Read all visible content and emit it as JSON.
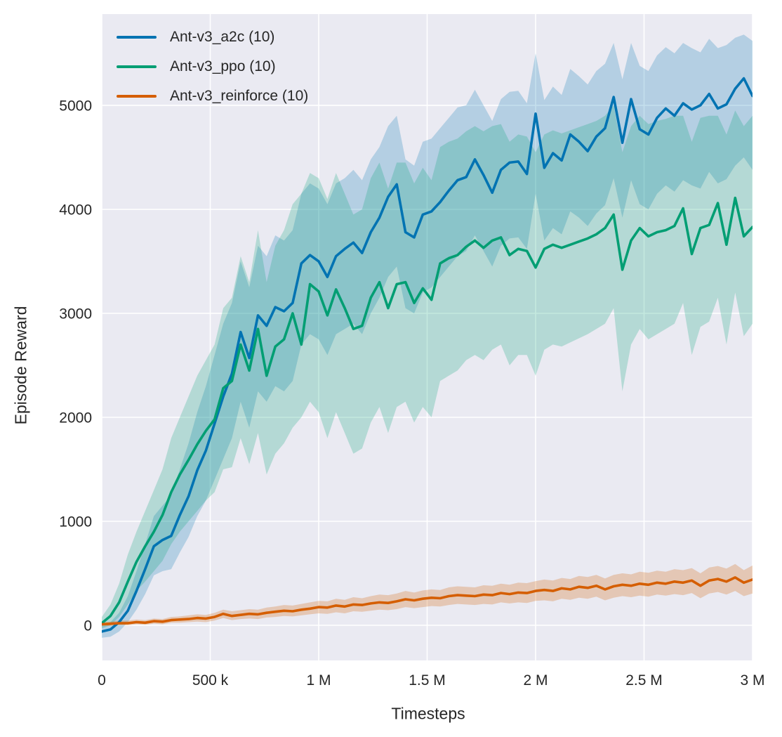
{
  "figure": {
    "background": "#ffffff",
    "plot_background": "#eaeaf2",
    "grid_color": "#ffffff",
    "text_color": "#262626"
  },
  "axes": {
    "xlabel": "Timesteps",
    "ylabel": "Episode Reward",
    "x_ticks": [
      {
        "value": 0,
        "label": "0"
      },
      {
        "value": 500000,
        "label": "500 k"
      },
      {
        "value": 1000000,
        "label": "1 M"
      },
      {
        "value": 1500000,
        "label": "1.5 M"
      },
      {
        "value": 2000000,
        "label": "2 M"
      },
      {
        "value": 2500000,
        "label": "2.5 M"
      },
      {
        "value": 3000000,
        "label": "3 M"
      }
    ],
    "y_ticks": [
      {
        "value": 0,
        "label": "0"
      },
      {
        "value": 1000,
        "label": "1000"
      },
      {
        "value": 2000,
        "label": "2000"
      },
      {
        "value": 3000,
        "label": "3000"
      },
      {
        "value": 4000,
        "label": "4000"
      },
      {
        "value": 5000,
        "label": "5000"
      }
    ]
  },
  "legend": {
    "entries": [
      {
        "label": "Ant-v3_a2c (10)",
        "color": "#0173b2"
      },
      {
        "label": "Ant-v3_ppo (10)",
        "color": "#029e73"
      },
      {
        "label": "Ant-v3_reinforce (10)",
        "color": "#d55e00"
      }
    ]
  },
  "chart_data": {
    "type": "line",
    "title": "",
    "xlabel": "Timesteps",
    "ylabel": "Episode Reward",
    "xlim": [
      0,
      3000000
    ],
    "ylim": [
      -338,
      5878
    ],
    "grid": true,
    "legend_position": "upper-left",
    "x": [
      0,
      40000,
      80000,
      120000,
      160000,
      200000,
      240000,
      280000,
      320000,
      360000,
      400000,
      440000,
      480000,
      520000,
      560000,
      600000,
      640000,
      680000,
      720000,
      760000,
      800000,
      840000,
      880000,
      920000,
      960000,
      1000000,
      1040000,
      1080000,
      1120000,
      1160000,
      1200000,
      1240000,
      1280000,
      1320000,
      1360000,
      1400000,
      1440000,
      1480000,
      1520000,
      1560000,
      1600000,
      1640000,
      1680000,
      1720000,
      1760000,
      1800000,
      1840000,
      1880000,
      1920000,
      1960000,
      2000000,
      2040000,
      2080000,
      2120000,
      2160000,
      2200000,
      2240000,
      2280000,
      2320000,
      2360000,
      2400000,
      2440000,
      2480000,
      2520000,
      2560000,
      2600000,
      2640000,
      2680000,
      2720000,
      2760000,
      2800000,
      2840000,
      2880000,
      2920000,
      2960000,
      3000000
    ],
    "series": [
      {
        "id": "a2c",
        "name": "Ant-v3_a2c (10)",
        "color": "#0173b2",
        "band_opacity": 0.23,
        "mean": [
          -60,
          -40,
          30,
          140,
          330,
          540,
          760,
          820,
          860,
          1060,
          1240,
          1490,
          1680,
          1940,
          2200,
          2420,
          2820,
          2570,
          2980,
          2880,
          3060,
          3020,
          3100,
          3480,
          3560,
          3500,
          3350,
          3550,
          3620,
          3680,
          3580,
          3780,
          3920,
          4120,
          4240,
          3780,
          3730,
          3950,
          3980,
          4070,
          4180,
          4280,
          4310,
          4480,
          4330,
          4160,
          4380,
          4450,
          4460,
          4340,
          4920,
          4400,
          4540,
          4470,
          4720,
          4650,
          4560,
          4700,
          4780,
          5080,
          4640,
          5060,
          4770,
          4720,
          4880,
          4970,
          4900,
          5020,
          4960,
          5000,
          5110,
          4970,
          5010,
          5160,
          5260,
          5090
        ],
        "lower": [
          -120,
          -110,
          -60,
          30,
          150,
          300,
          480,
          520,
          540,
          700,
          850,
          1050,
          1200,
          1400,
          1600,
          1800,
          2150,
          1900,
          2250,
          2150,
          2300,
          2250,
          2350,
          2700,
          2800,
          2750,
          2600,
          2800,
          2850,
          2900,
          2800,
          3000,
          3150,
          3350,
          3450,
          3050,
          3000,
          3200,
          3250,
          3350,
          3450,
          3550,
          3600,
          3750,
          3600,
          3450,
          3650,
          3720,
          3730,
          3620,
          4150,
          3700,
          3820,
          3760,
          3980,
          3920,
          3840,
          3960,
          4040,
          4300,
          3920,
          4280,
          4050,
          4000,
          4150,
          4230,
          4170,
          4280,
          4230,
          4200,
          4360,
          4250,
          4290,
          4420,
          4500,
          4380
        ],
        "upper": [
          0,
          30,
          120,
          280,
          520,
          780,
          1050,
          1150,
          1250,
          1500,
          1750,
          2050,
          2300,
          2600,
          2900,
          3100,
          3500,
          3250,
          3650,
          3550,
          3750,
          3700,
          3800,
          4150,
          4250,
          4200,
          4050,
          4250,
          4300,
          4380,
          4280,
          4480,
          4600,
          4800,
          4900,
          4480,
          4420,
          4650,
          4680,
          4780,
          4880,
          4980,
          5000,
          5150,
          5000,
          4850,
          5060,
          5130,
          5140,
          5020,
          5500,
          5050,
          5180,
          5100,
          5350,
          5280,
          5200,
          5330,
          5400,
          5600,
          5250,
          5600,
          5380,
          5330,
          5480,
          5560,
          5500,
          5600,
          5550,
          5510,
          5640,
          5550,
          5580,
          5650,
          5680,
          5620
        ]
      },
      {
        "id": "ppo",
        "name": "Ant-v3_ppo (10)",
        "color": "#029e73",
        "band_opacity": 0.23,
        "mean": [
          20,
          90,
          220,
          420,
          610,
          760,
          900,
          1060,
          1280,
          1450,
          1590,
          1740,
          1870,
          1980,
          2280,
          2350,
          2700,
          2450,
          2850,
          2400,
          2680,
          2750,
          3000,
          2700,
          3280,
          3210,
          2980,
          3230,
          3050,
          2850,
          2880,
          3150,
          3300,
          3050,
          3280,
          3300,
          3100,
          3240,
          3130,
          3480,
          3530,
          3560,
          3640,
          3700,
          3630,
          3700,
          3730,
          3560,
          3620,
          3600,
          3440,
          3620,
          3660,
          3630,
          3660,
          3690,
          3720,
          3760,
          3820,
          3950,
          3420,
          3700,
          3820,
          3740,
          3780,
          3800,
          3840,
          4010,
          3570,
          3820,
          3850,
          4060,
          3660,
          4110,
          3740,
          3830
        ],
        "lower": [
          -30,
          0,
          80,
          200,
          330,
          420,
          520,
          620,
          780,
          900,
          1000,
          1100,
          1200,
          1280,
          1500,
          1520,
          1800,
          1550,
          1850,
          1450,
          1650,
          1750,
          1900,
          2000,
          2150,
          2050,
          1800,
          2050,
          1850,
          1650,
          1700,
          1950,
          2100,
          1850,
          2100,
          2150,
          1950,
          2100,
          2000,
          2350,
          2400,
          2450,
          2550,
          2600,
          2550,
          2650,
          2700,
          2500,
          2600,
          2600,
          2400,
          2650,
          2700,
          2680,
          2720,
          2760,
          2800,
          2850,
          2900,
          3050,
          2250,
          2700,
          2850,
          2750,
          2800,
          2850,
          2900,
          3100,
          2600,
          2870,
          2920,
          3150,
          2700,
          3200,
          2780,
          2900
        ],
        "upper": [
          80,
          200,
          400,
          680,
          900,
          1100,
          1300,
          1500,
          1800,
          2000,
          2200,
          2400,
          2550,
          2700,
          3050,
          3150,
          3550,
          3300,
          3800,
          3300,
          3650,
          3800,
          4050,
          4150,
          4350,
          4300,
          4100,
          4350,
          4150,
          3950,
          4000,
          4300,
          4450,
          4200,
          4450,
          4450,
          4250,
          4400,
          4280,
          4600,
          4650,
          4680,
          4750,
          4800,
          4750,
          4800,
          4820,
          4650,
          4720,
          4700,
          4550,
          4720,
          4760,
          4730,
          4760,
          4790,
          4820,
          4850,
          4900,
          5000,
          4550,
          4800,
          4900,
          4820,
          4850,
          4870,
          4900,
          4900,
          4650,
          4880,
          4900,
          4900,
          4720,
          4950,
          4800,
          4900
        ]
      },
      {
        "id": "reinforce",
        "name": "Ant-v3_reinforce (10)",
        "color": "#d55e00",
        "band_opacity": 0.25,
        "mean": [
          10,
          15,
          20,
          20,
          30,
          25,
          40,
          35,
          50,
          55,
          60,
          70,
          65,
          80,
          110,
          90,
          100,
          110,
          105,
          120,
          130,
          140,
          135,
          150,
          160,
          175,
          170,
          190,
          180,
          200,
          195,
          210,
          220,
          215,
          230,
          250,
          240,
          255,
          265,
          260,
          280,
          290,
          285,
          280,
          295,
          290,
          310,
          300,
          315,
          310,
          330,
          340,
          330,
          355,
          345,
          370,
          360,
          380,
          345,
          375,
          390,
          380,
          400,
          390,
          410,
          400,
          420,
          410,
          430,
          380,
          430,
          445,
          420,
          460,
          410,
          440
        ],
        "lower": [
          -10,
          -5,
          0,
          0,
          10,
          5,
          15,
          10,
          25,
          25,
          30,
          35,
          30,
          45,
          70,
          50,
          60,
          65,
          60,
          75,
          80,
          90,
          85,
          95,
          105,
          115,
          110,
          125,
          115,
          135,
          130,
          140,
          150,
          145,
          155,
          175,
          165,
          175,
          185,
          180,
          195,
          205,
          200,
          195,
          205,
          200,
          220,
          210,
          220,
          215,
          235,
          240,
          230,
          255,
          245,
          265,
          255,
          275,
          240,
          265,
          280,
          270,
          285,
          275,
          295,
          285,
          300,
          290,
          310,
          260,
          305,
          320,
          295,
          330,
          280,
          305
        ],
        "upper": [
          30,
          35,
          45,
          45,
          55,
          50,
          65,
          60,
          80,
          85,
          95,
          105,
          100,
          120,
          150,
          135,
          145,
          155,
          150,
          170,
          180,
          195,
          190,
          205,
          220,
          235,
          230,
          255,
          245,
          270,
          260,
          280,
          295,
          290,
          305,
          330,
          315,
          335,
          345,
          340,
          365,
          375,
          370,
          365,
          385,
          380,
          400,
          390,
          410,
          405,
          425,
          440,
          430,
          455,
          445,
          475,
          465,
          485,
          450,
          485,
          500,
          490,
          515,
          505,
          525,
          515,
          540,
          530,
          550,
          500,
          555,
          570,
          545,
          590,
          530,
          575
        ]
      }
    ]
  }
}
